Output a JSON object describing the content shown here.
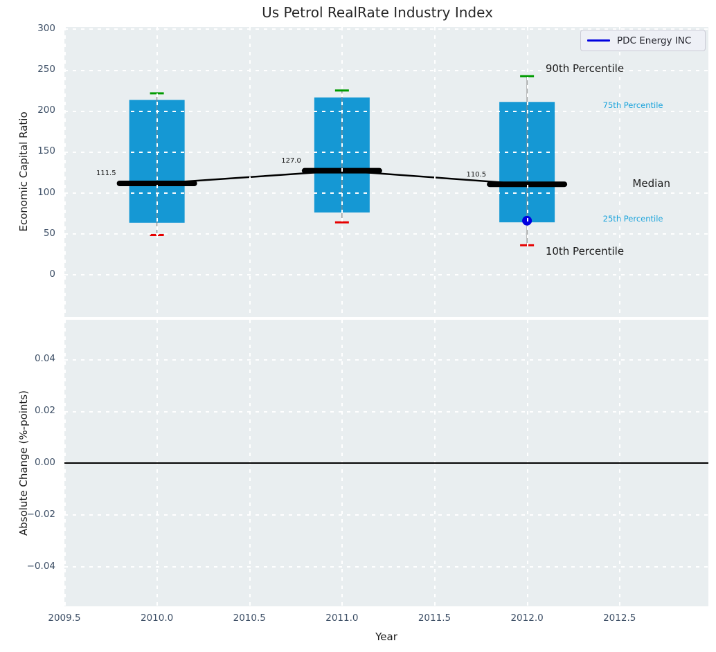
{
  "title": "Us Petrol RealRate Industry Index",
  "legend": {
    "label": "PDC Energy INC",
    "line_color": "#0000e0"
  },
  "axes": {
    "x": {
      "label": "Year",
      "tick_labels": [
        "2009.5",
        "2010.0",
        "2010.5",
        "2011.0",
        "2011.5",
        "2012.0",
        "2012.5"
      ],
      "tick_values": [
        2009.5,
        2010.0,
        2010.5,
        2011.0,
        2011.5,
        2012.0,
        2012.5
      ],
      "lim": [
        2009.5,
        2012.98
      ]
    },
    "top_y": {
      "label": "Economic Capital Ratio",
      "tick_labels": [
        "0",
        "50",
        "100",
        "150",
        "200",
        "250",
        "300"
      ],
      "tick_values": [
        0,
        50,
        100,
        150,
        200,
        250,
        300
      ],
      "lim": [
        -51.6,
        302.5
      ]
    },
    "bottom_y": {
      "label": "Absolute Change (%-points)",
      "tick_labels": [
        "−0.04",
        "−0.02",
        "0.00",
        "0.02",
        "0.04"
      ],
      "tick_values": [
        -0.04,
        -0.02,
        0.0,
        0.02,
        0.04
      ],
      "lim": [
        -0.0553,
        0.0553
      ]
    }
  },
  "chart_data": {
    "type": "box-percentile",
    "title": "Us Petrol RealRate Industry Index",
    "xlabel": "Year",
    "grid": true,
    "legend_position": "upper right",
    "top_panel": {
      "ylabel": "Economic Capital Ratio",
      "years": [
        2010,
        2011,
        2012
      ],
      "series": [
        {
          "name": "90th Percentile",
          "values": [
            221.5,
            225.0,
            242.5
          ]
        },
        {
          "name": "75th Percentile",
          "values": [
            213.5,
            216.5,
            211.0
          ]
        },
        {
          "name": "Median",
          "values": [
            111.5,
            127.0,
            110.5
          ]
        },
        {
          "name": "25th Percentile",
          "values": [
            63.5,
            76.0,
            64.0
          ]
        },
        {
          "name": "10th Percentile",
          "values": [
            48.5,
            64.0,
            36.0
          ]
        }
      ],
      "median_labels": [
        "111.5",
        "127.0",
        "110.5"
      ],
      "company": {
        "name": "PDC Energy INC",
        "points": [
          [
            2012,
            66
          ]
        ]
      },
      "annotations": [
        {
          "text": "90th Percentile",
          "x": 2012.1,
          "y": 251.0,
          "color": "#1a1a1a",
          "size": 15
        },
        {
          "text": "75th Percentile",
          "x": 2012.41,
          "y": 206.0,
          "color": "#1aa3db",
          "size": 11.5
        },
        {
          "text": "Median",
          "x": 2012.57,
          "y": 110.7,
          "color": "#1a1a1a",
          "size": 15
        },
        {
          "text": "25th Percentile",
          "x": 2012.41,
          "y": 67.5,
          "color": "#1aa3db",
          "size": 11.5
        },
        {
          "text": "10th Percentile",
          "x": 2012.1,
          "y": 28.0,
          "color": "#1a1a1a",
          "size": 15
        }
      ]
    },
    "bottom_panel": {
      "ylabel": "Absolute Change (%-points)",
      "zero_line": 0.0,
      "series": []
    },
    "colors": {
      "bar": "#1598d4",
      "p90_cap": "#009b00",
      "p10_cap": "#e60000",
      "whisker": "#8a8a8a",
      "median": "#000000",
      "company": "#0000e0"
    }
  }
}
